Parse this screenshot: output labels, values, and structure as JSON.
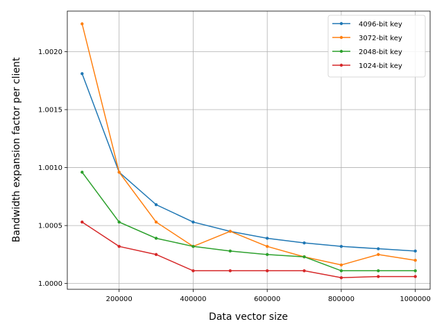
{
  "chart_data": {
    "type": "line",
    "title": "",
    "xlabel": "Data vector size",
    "ylabel": "Bandwidth expansion factor per client",
    "x": [
      100000,
      200000,
      300000,
      400000,
      500000,
      600000,
      700000,
      800000,
      900000,
      1000000
    ],
    "xlim": [
      60000,
      1040000
    ],
    "ylim": [
      0.99995,
      1.00235
    ],
    "xticks": [
      200000,
      400000,
      600000,
      800000,
      1000000
    ],
    "xtick_labels": [
      "200000",
      "400000",
      "600000",
      "800000",
      "1000000"
    ],
    "yticks": [
      1.0,
      1.0005,
      1.001,
      1.0015,
      1.002
    ],
    "ytick_labels": [
      "1.0000",
      "1.0005",
      "1.0010",
      "1.0015",
      "1.0020"
    ],
    "grid": true,
    "legend_position": "top-right",
    "series": [
      {
        "name": "4096-bit key",
        "color": "#1f77b4",
        "values": [
          1.00181,
          1.00096,
          1.00068,
          1.00053,
          1.00045,
          1.00039,
          1.00035,
          1.00032,
          1.0003,
          1.00028
        ]
      },
      {
        "name": "3072-bit key",
        "color": "#ff7f0e",
        "values": [
          1.00224,
          1.00096,
          1.00053,
          1.00032,
          1.00045,
          1.00032,
          1.00023,
          1.00016,
          1.00025,
          1.0002
        ]
      },
      {
        "name": "2048-bit key",
        "color": "#2ca02c",
        "values": [
          1.00096,
          1.00053,
          1.00039,
          1.00032,
          1.00028,
          1.00025,
          1.00023,
          1.00011,
          1.00011,
          1.00011
        ]
      },
      {
        "name": "1024-bit key",
        "color": "#d62728",
        "values": [
          1.00053,
          1.00032,
          1.00025,
          1.00011,
          1.00011,
          1.00011,
          1.00011,
          1.00005,
          1.00006,
          1.00006
        ]
      }
    ]
  }
}
